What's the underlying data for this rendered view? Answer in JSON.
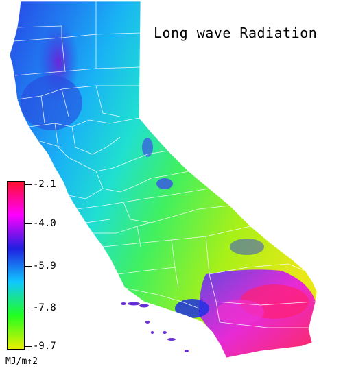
{
  "title": "Long wave Radiation",
  "legend": {
    "ticks": [
      "-2.1",
      "-4.0",
      "-5.9",
      "-7.8",
      "-9.7"
    ],
    "units": "MJ/m↑2",
    "colors": [
      "#ff1030",
      "#ff00ff",
      "#2020e0",
      "#10c8ff",
      "#20ff20",
      "#e8f000"
    ],
    "range": [
      -9.7,
      -2.1
    ]
  },
  "map": {
    "region": "California",
    "boundaries": "county outlines"
  }
}
